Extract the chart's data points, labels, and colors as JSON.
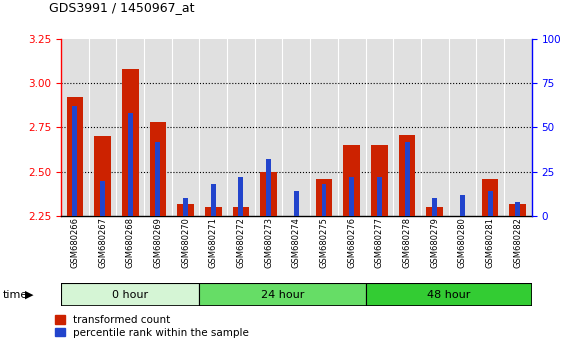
{
  "title": "GDS3991 / 1450967_at",
  "samples": [
    "GSM680266",
    "GSM680267",
    "GSM680268",
    "GSM680269",
    "GSM680270",
    "GSM680271",
    "GSM680272",
    "GSM680273",
    "GSM680274",
    "GSM680275",
    "GSM680276",
    "GSM680277",
    "GSM680278",
    "GSM680279",
    "GSM680280",
    "GSM680281",
    "GSM680282"
  ],
  "transformed_count": [
    2.92,
    2.7,
    3.08,
    2.78,
    2.32,
    2.3,
    2.3,
    2.5,
    2.2,
    2.46,
    2.65,
    2.65,
    2.71,
    2.3,
    2.2,
    2.46,
    2.32
  ],
  "percentile_rank": [
    62,
    20,
    58,
    42,
    10,
    18,
    22,
    32,
    14,
    18,
    22,
    22,
    42,
    10,
    12,
    14,
    8
  ],
  "groups": [
    {
      "label": "0 hour",
      "start": 0,
      "end": 5,
      "color": "#d5f5d5"
    },
    {
      "label": "24 hour",
      "start": 5,
      "end": 11,
      "color": "#66dd66"
    },
    {
      "label": "48 hour",
      "start": 11,
      "end": 17,
      "color": "#33cc33"
    }
  ],
  "ylim_left": [
    2.25,
    3.25
  ],
  "ylim_right": [
    0,
    100
  ],
  "yticks_left": [
    2.25,
    2.5,
    2.75,
    3.0,
    3.25
  ],
  "yticks_right": [
    0,
    25,
    50,
    75,
    100
  ],
  "bar_color": "#cc2200",
  "percentile_color": "#2244cc",
  "bar_width": 0.6,
  "blue_bar_width": 0.18,
  "base_value": 2.25,
  "col_bg_color": "#e0e0e0",
  "grid_yticks": [
    2.5,
    2.75,
    3.0
  ]
}
